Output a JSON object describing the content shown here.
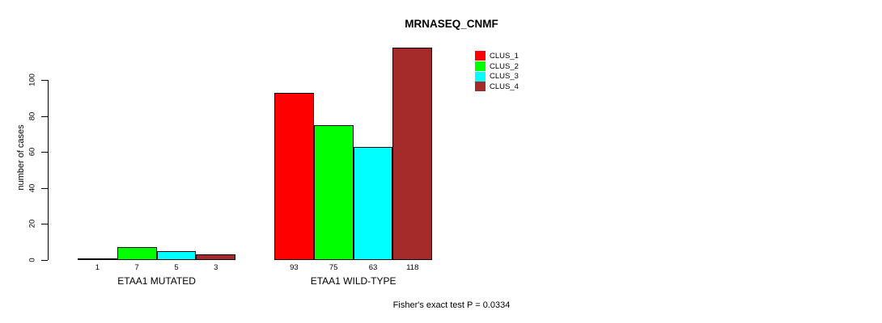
{
  "chart_data": {
    "type": "bar",
    "title": "MRNASEQ_CNMF",
    "ylabel": "number of cases",
    "xlabel": "",
    "categories": [
      "ETAA1 MUTATED",
      "ETAA1 WILD-TYPE"
    ],
    "series": [
      {
        "name": "CLUS_1",
        "color": "#ff0000",
        "values": [
          1,
          93
        ]
      },
      {
        "name": "CLUS_2",
        "color": "#00ff00",
        "values": [
          7,
          75
        ]
      },
      {
        "name": "CLUS_3",
        "color": "#00ffff",
        "values": [
          5,
          63
        ]
      },
      {
        "name": "CLUS_4",
        "color": "#a52a2a",
        "values": [
          3,
          118
        ]
      }
    ],
    "yticks": [
      0,
      20,
      40,
      60,
      80,
      100
    ],
    "ylim": [
      0,
      118
    ],
    "bar_value_labels": true,
    "grid": false,
    "legend_position": "top-right",
    "annotation": "Fisher's exact test P = 0.0334",
    "colors": {
      "axis": "#000000",
      "bar_border": "#000000",
      "background": "#ffffff"
    }
  }
}
